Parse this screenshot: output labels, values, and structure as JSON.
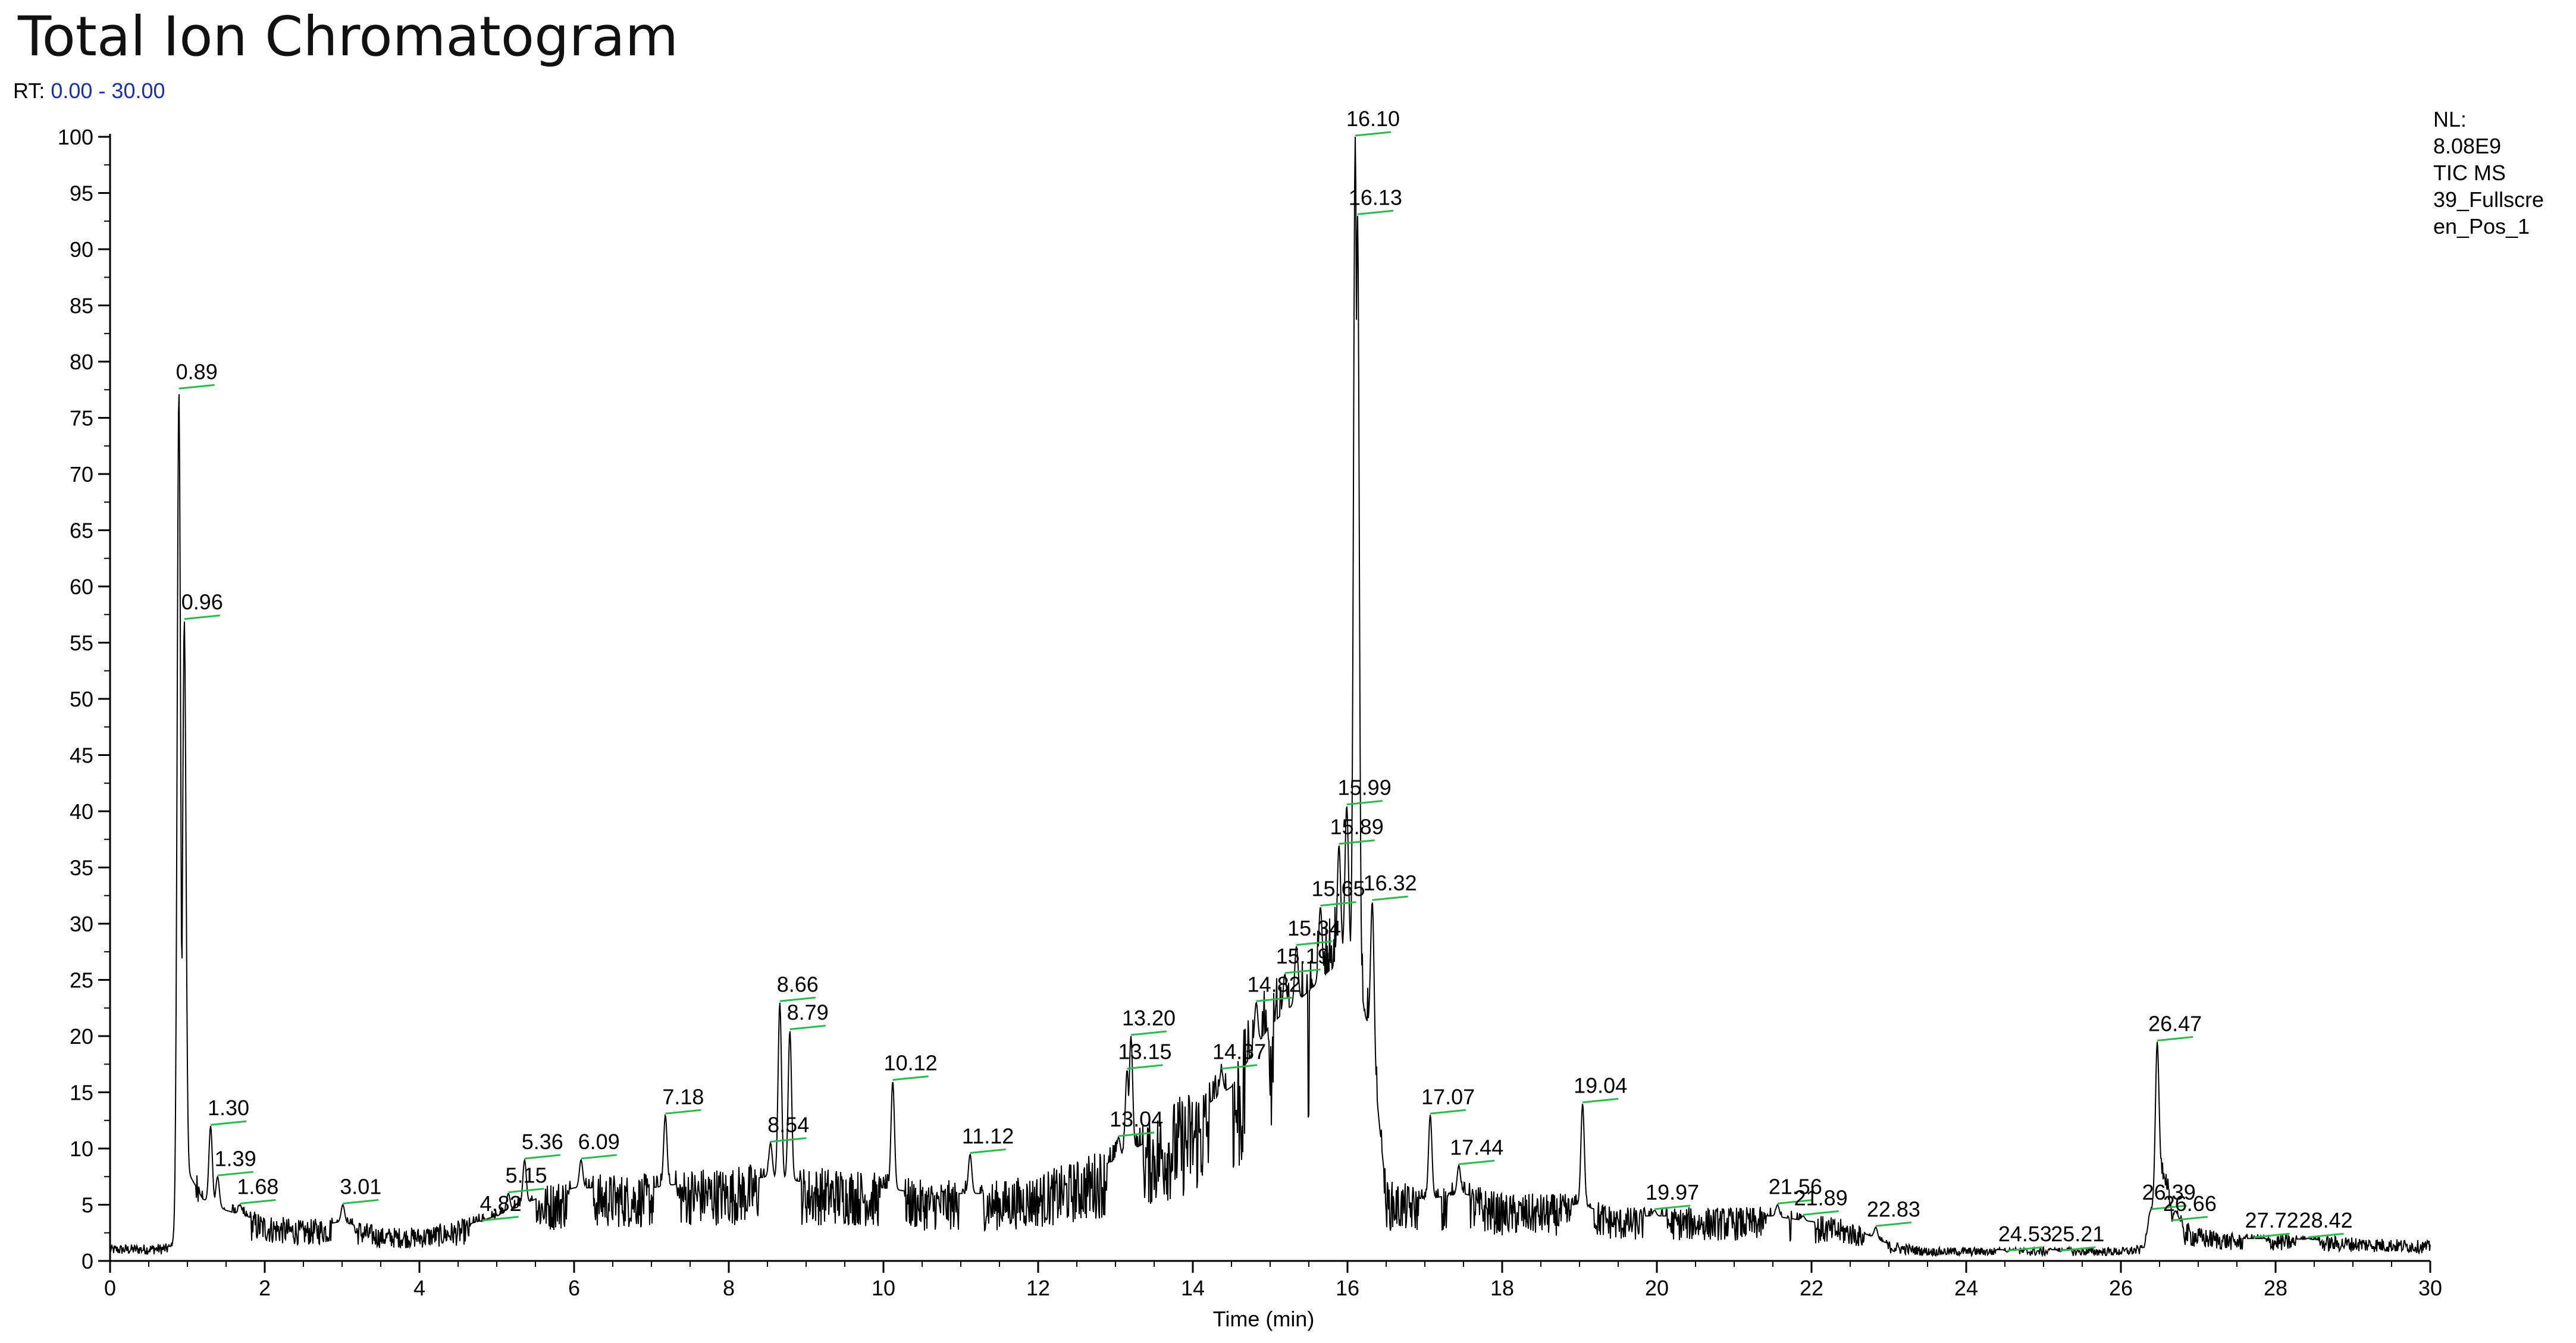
{
  "title": "Total Ion Chromatogram",
  "rt": {
    "label": "RT:",
    "range": "0.00 - 30.00"
  },
  "info": [
    "NL:",
    "8.08E9",
    "TIC  MS",
    "39_Fullscre",
    "en_Pos_1"
  ],
  "colors": {
    "trace": "#000000",
    "peak_marker": "#2db84d",
    "rt_range": "#1a2eb0"
  },
  "chart_data": {
    "type": "line",
    "title": "Total Ion Chromatogram",
    "xlabel": "Time (min)",
    "ylabel": "",
    "xlim": [
      0,
      30
    ],
    "ylim": [
      0,
      100
    ],
    "x_ticks": [
      0,
      2,
      4,
      6,
      8,
      10,
      12,
      14,
      16,
      18,
      20,
      22,
      24,
      26,
      28,
      30
    ],
    "y_ticks": [
      0,
      5,
      10,
      15,
      20,
      25,
      30,
      35,
      40,
      45,
      50,
      55,
      60,
      65,
      70,
      75,
      80,
      85,
      90,
      95,
      100
    ],
    "grid": false,
    "peaks": [
      {
        "x": 0.89,
        "y": 77.5,
        "label": "0.89"
      },
      {
        "x": 0.96,
        "y": 57,
        "label": "0.96"
      },
      {
        "x": 1.3,
        "y": 12,
        "label": "1.30"
      },
      {
        "x": 1.39,
        "y": 7.5,
        "label": "1.39"
      },
      {
        "x": 1.68,
        "y": 5,
        "label": "1.68"
      },
      {
        "x": 3.01,
        "y": 5,
        "label": "3.01"
      },
      {
        "x": 4.82,
        "y": 3.5,
        "label": "4.82"
      },
      {
        "x": 5.15,
        "y": 6,
        "label": "5.15"
      },
      {
        "x": 5.36,
        "y": 9,
        "label": "5.36"
      },
      {
        "x": 6.09,
        "y": 9,
        "label": "6.09"
      },
      {
        "x": 7.18,
        "y": 13,
        "label": "7.18"
      },
      {
        "x": 8.54,
        "y": 10.5,
        "label": "8.54"
      },
      {
        "x": 8.66,
        "y": 23,
        "label": "8.66"
      },
      {
        "x": 8.79,
        "y": 20.5,
        "label": "8.79"
      },
      {
        "x": 10.12,
        "y": 16,
        "label": "10.12"
      },
      {
        "x": 11.12,
        "y": 9.5,
        "label": "11.12"
      },
      {
        "x": 13.04,
        "y": 11,
        "label": "13.04"
      },
      {
        "x": 13.15,
        "y": 17,
        "label": "13.15"
      },
      {
        "x": 13.2,
        "y": 20,
        "label": "13.20"
      },
      {
        "x": 14.37,
        "y": 17,
        "label": "14.37"
      },
      {
        "x": 14.82,
        "y": 23,
        "label": "14.82"
      },
      {
        "x": 15.19,
        "y": 25.5,
        "label": "15.19"
      },
      {
        "x": 15.34,
        "y": 28,
        "label": "15.34"
      },
      {
        "x": 15.65,
        "y": 31.5,
        "label": "15.65"
      },
      {
        "x": 15.89,
        "y": 37,
        "label": "15.89"
      },
      {
        "x": 15.99,
        "y": 40.5,
        "label": "15.99"
      },
      {
        "x": 16.1,
        "y": 100,
        "label": "16.10"
      },
      {
        "x": 16.13,
        "y": 93,
        "label": "16.13"
      },
      {
        "x": 16.32,
        "y": 32,
        "label": "16.32"
      },
      {
        "x": 17.07,
        "y": 13,
        "label": "17.07"
      },
      {
        "x": 17.44,
        "y": 8.5,
        "label": "17.44"
      },
      {
        "x": 19.04,
        "y": 14,
        "label": "19.04"
      },
      {
        "x": 19.97,
        "y": 4.5,
        "label": "19.97"
      },
      {
        "x": 21.56,
        "y": 5,
        "label": "21.56"
      },
      {
        "x": 21.89,
        "y": 4,
        "label": "21.89"
      },
      {
        "x": 22.83,
        "y": 3,
        "label": "22.83"
      },
      {
        "x": 24.53,
        "y": 0.8,
        "label": "24.53"
      },
      {
        "x": 25.21,
        "y": 0.8,
        "label": "25.21"
      },
      {
        "x": 26.39,
        "y": 4.5,
        "label": "26.39"
      },
      {
        "x": 26.47,
        "y": 19.5,
        "label": "26.47"
      },
      {
        "x": 26.66,
        "y": 3.5,
        "label": "26.66"
      },
      {
        "x": 27.72,
        "y": 2,
        "label": "27.72"
      },
      {
        "x": 28.42,
        "y": 2,
        "label": "28.42"
      }
    ],
    "baseline": [
      [
        0.0,
        1.2
      ],
      [
        0.8,
        1.3
      ],
      [
        1.0,
        8
      ],
      [
        1.2,
        5.5
      ],
      [
        1.5,
        4.5
      ],
      [
        2.0,
        3.5
      ],
      [
        2.5,
        3.0
      ],
      [
        3.0,
        3.5
      ],
      [
        3.5,
        2.5
      ],
      [
        4.0,
        2.5
      ],
      [
        4.5,
        3.0
      ],
      [
        5.0,
        4.0
      ],
      [
        5.5,
        5.5
      ],
      [
        6.0,
        6.5
      ],
      [
        6.5,
        6.5
      ],
      [
        7.0,
        6.5
      ],
      [
        7.5,
        7.0
      ],
      [
        8.0,
        7.0
      ],
      [
        8.5,
        7.5
      ],
      [
        9.0,
        7.0
      ],
      [
        9.5,
        7.0
      ],
      [
        10.0,
        6.5
      ],
      [
        10.5,
        6.0
      ],
      [
        11.0,
        6.0
      ],
      [
        11.5,
        6.0
      ],
      [
        12.0,
        6.5
      ],
      [
        12.5,
        7.5
      ],
      [
        13.0,
        9.0
      ],
      [
        13.5,
        11.0
      ],
      [
        14.0,
        13.0
      ],
      [
        14.5,
        15.5
      ],
      [
        15.0,
        21.0
      ],
      [
        15.5,
        24.0
      ],
      [
        15.8,
        26.0
      ],
      [
        16.0,
        28.0
      ],
      [
        16.3,
        20.0
      ],
      [
        16.5,
        6.0
      ],
      [
        17.0,
        5.5
      ],
      [
        17.5,
        6.0
      ],
      [
        18.0,
        5.0
      ],
      [
        18.5,
        5.0
      ],
      [
        19.0,
        5.0
      ],
      [
        19.5,
        4.0
      ],
      [
        20.0,
        4.0
      ],
      [
        20.5,
        4.0
      ],
      [
        21.0,
        4.0
      ],
      [
        21.5,
        4.0
      ],
      [
        22.0,
        3.5
      ],
      [
        22.5,
        3.0
      ],
      [
        23.0,
        1.5
      ],
      [
        23.5,
        1.0
      ],
      [
        24.0,
        1.0
      ],
      [
        25.0,
        1.0
      ],
      [
        26.0,
        1.0
      ],
      [
        26.3,
        1.2
      ],
      [
        26.5,
        8.0
      ],
      [
        26.8,
        3.0
      ],
      [
        27.0,
        2.5
      ],
      [
        27.5,
        2.0
      ],
      [
        28.0,
        2.0
      ],
      [
        29.0,
        1.8
      ],
      [
        30.0,
        1.5
      ]
    ]
  }
}
